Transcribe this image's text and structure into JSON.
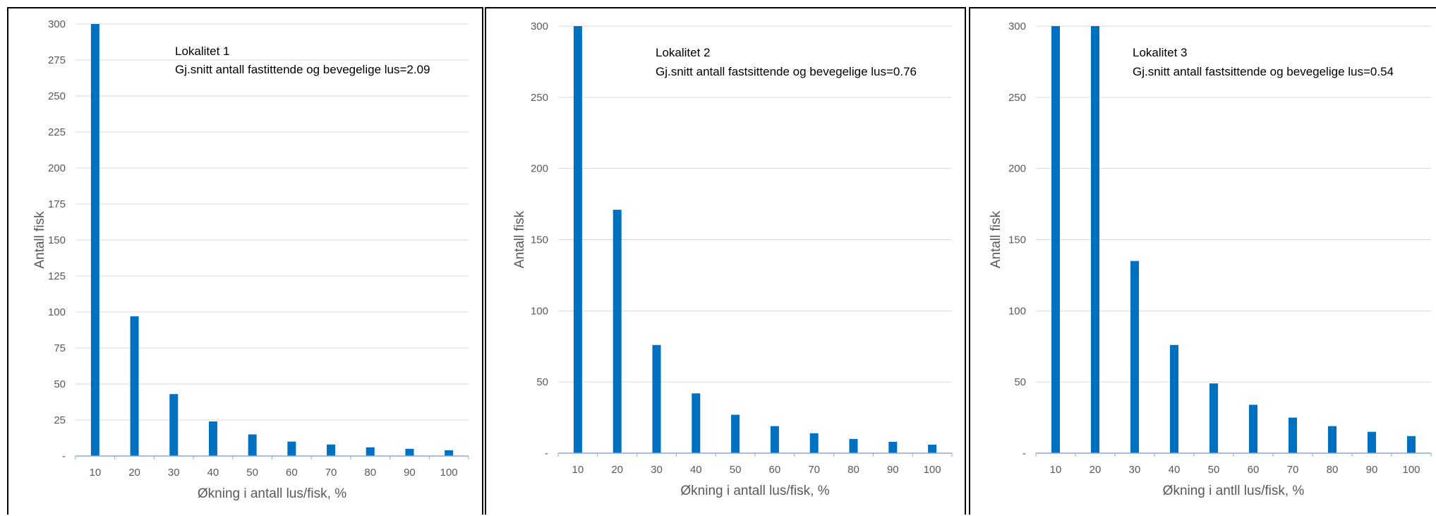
{
  "colors": {
    "bar": "#0070c0",
    "grid": "#d9d9d9",
    "axis": "#8ea9db"
  },
  "chart_data": [
    {
      "type": "bar",
      "annotation_line1": "Lokalitet 1",
      "annotation_line2": "Gj.snitt antall fastittende og bevegelige  lus=2.09",
      "xlabel": "Økning i antall lus/fisk, %",
      "ylabel": "Antall fisk",
      "categories": [
        "10",
        "20",
        "30",
        "40",
        "50",
        "60",
        "70",
        "80",
        "90",
        "100"
      ],
      "values": [
        300,
        97,
        43,
        24,
        15,
        10,
        8,
        6,
        5,
        4
      ],
      "ylim": [
        0,
        300
      ],
      "ytick_values": [
        0,
        25,
        50,
        75,
        100,
        125,
        150,
        175,
        200,
        225,
        250,
        275,
        300
      ],
      "ytick_labels": [
        "-",
        "25",
        "50",
        "75",
        "100",
        "125",
        "150",
        "175",
        "200",
        "225",
        "250",
        "275",
        "300"
      ],
      "grid": true
    },
    {
      "type": "bar",
      "annotation_line1": "Lokalitet 2",
      "annotation_line2": "Gj.snitt antall fastsittende og bevegelige  lus=0.76",
      "xlabel": "Økning i antall lus/fisk, %",
      "ylabel": "Antall fisk",
      "categories": [
        "10",
        "20",
        "30",
        "40",
        "50",
        "60",
        "70",
        "80",
        "90",
        "100"
      ],
      "values": [
        300,
        171,
        76,
        42,
        27,
        19,
        14,
        10,
        8,
        6
      ],
      "ylim": [
        0,
        300
      ],
      "ytick_values": [
        0,
        50,
        100,
        150,
        200,
        250,
        300
      ],
      "ytick_labels": [
        "-",
        "50",
        "100",
        "150",
        "200",
        "250",
        "300"
      ],
      "grid": true
    },
    {
      "type": "bar",
      "annotation_line1": "Lokalitet 3",
      "annotation_line2": "Gj.snitt antall fastsittende og bevegelige  lus=0.54",
      "xlabel": "Økning i antll lus/fisk, %",
      "ylabel": "Antall fisk",
      "categories": [
        "10",
        "20",
        "30",
        "40",
        "50",
        "60",
        "70",
        "80",
        "90",
        "100"
      ],
      "values": [
        300,
        300,
        135,
        76,
        49,
        34,
        25,
        19,
        15,
        12
      ],
      "ylim": [
        0,
        300
      ],
      "ytick_values": [
        0,
        50,
        100,
        150,
        200,
        250,
        300
      ],
      "ytick_labels": [
        "-",
        "50",
        "100",
        "150",
        "200",
        "250",
        "300"
      ],
      "grid": true
    }
  ]
}
